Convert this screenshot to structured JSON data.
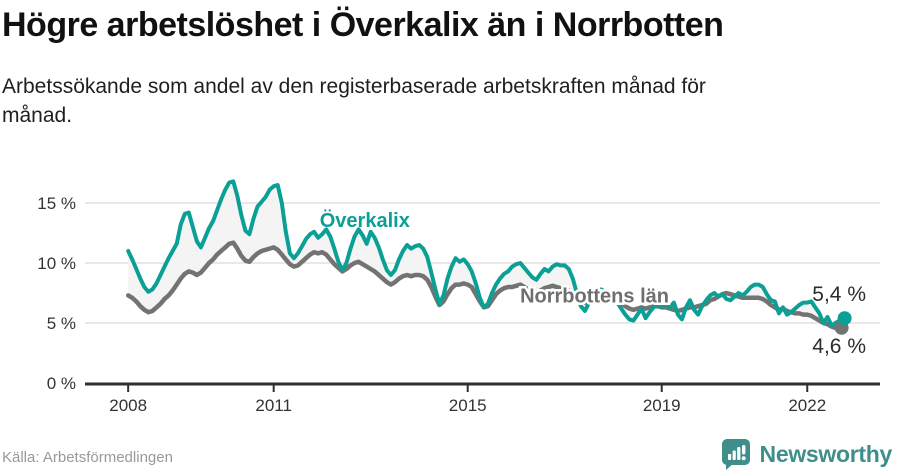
{
  "header": {
    "title": "Högre arbetslöshet i Överkalix än i Norrbotten",
    "subtitle_line1": "Arbetssökande som andel av den registerbaserade arbetskraften månad för",
    "subtitle_line2": "månad."
  },
  "footer": {
    "source": "Källa: Arbetsförmedlingen",
    "brand": "Newsworthy"
  },
  "colors": {
    "overkalix": "#0aa096",
    "norrbotten": "#737373",
    "norrbotten_label": "#6e6e6e",
    "area_fill": "#f4f4f4",
    "grid": "#d9d9d9",
    "axis": "#2f2f2f",
    "tick_text": "#333333",
    "value_label": "#2d2d2d",
    "brand_teal": "#3e8e8b"
  },
  "chart_data": {
    "type": "line",
    "title": "Högre arbetslöshet i Överkalix än i Norrbotten",
    "subtitle": "Arbetssökande som andel av den registerbaserade arbetskraften månad för månad.",
    "unit": "percent of registered labour force",
    "x_start": 2008.0,
    "x_step_months": 1,
    "xlim": [
      2007.11,
      2023.5
    ],
    "ylim": [
      0,
      17.5
    ],
    "grid": true,
    "x_ticks": [
      2008,
      2011,
      2015,
      2019,
      2022
    ],
    "x_tick_labels": [
      "2008",
      "2011",
      "2015",
      "2019",
      "2022"
    ],
    "y_ticks": [
      0,
      5,
      10,
      15
    ],
    "y_tick_labels": [
      "0 %",
      "5 %",
      "10 %",
      "15 %"
    ],
    "series": [
      {
        "name": "Överkalix",
        "end_label": "5,4 %",
        "end_value": 5.4,
        "label_pos": {
          "x": 2011.95,
          "y": 13.0
        },
        "values": [
          11.0,
          10.3,
          9.5,
          8.7,
          8.0,
          7.6,
          7.8,
          8.3,
          9.0,
          9.7,
          10.4,
          11.0,
          11.6,
          13.2,
          14.1,
          14.2,
          13.0,
          11.8,
          11.3,
          12.1,
          12.9,
          13.5,
          14.4,
          15.3,
          16.1,
          16.7,
          16.8,
          15.6,
          14.0,
          12.7,
          12.4,
          13.7,
          14.7,
          15.1,
          15.5,
          16.1,
          16.4,
          16.5,
          15.0,
          12.6,
          10.8,
          10.4,
          10.8,
          11.4,
          12.0,
          12.4,
          12.6,
          12.1,
          12.4,
          12.8,
          12.2,
          11.2,
          10.1,
          9.4,
          10.0,
          11.2,
          12.2,
          12.8,
          12.3,
          11.6,
          12.6,
          12.1,
          11.3,
          10.3,
          9.4,
          9.0,
          9.4,
          10.3,
          11.0,
          11.5,
          11.2,
          11.4,
          11.5,
          11.2,
          10.5,
          9.2,
          7.8,
          6.6,
          7.3,
          8.7,
          9.7,
          10.4,
          10.1,
          10.3,
          9.9,
          9.3,
          8.3,
          7.1,
          6.3,
          6.6,
          7.5,
          8.2,
          8.7,
          9.1,
          9.3,
          9.7,
          9.9,
          10.0,
          9.6,
          9.2,
          8.8,
          8.6,
          9.1,
          9.5,
          9.3,
          9.7,
          9.9,
          9.8,
          9.8,
          9.5,
          8.7,
          7.5,
          6.4,
          6.0,
          6.7,
          7.5,
          7.7,
          7.8,
          7.6,
          7.3,
          7.1,
          6.7,
          6.2,
          5.7,
          5.3,
          5.2,
          5.7,
          6.2,
          5.4,
          5.9,
          6.3,
          6.7,
          6.3,
          6.8,
          6.3,
          6.7,
          5.7,
          5.3,
          6.3,
          6.9,
          6.1,
          5.7,
          6.4,
          6.9,
          7.3,
          7.5,
          7.2,
          7.4,
          7.0,
          6.9,
          7.2,
          7.5,
          7.3,
          7.6,
          8.0,
          8.2,
          8.2,
          8.0,
          7.4,
          6.9,
          6.8,
          5.8,
          6.3,
          5.7,
          5.9,
          6.2,
          6.5,
          6.7,
          6.7,
          6.8,
          6.3,
          5.8,
          5.0,
          5.5,
          4.8,
          5.0,
          5.2,
          5.4
        ]
      },
      {
        "name": "Norrbottens län",
        "end_label": "4,6 %",
        "end_value": 4.6,
        "label_pos": {
          "x": 2016.08,
          "y": 6.7
        },
        "values": [
          7.3,
          7.1,
          6.8,
          6.4,
          6.1,
          5.9,
          6.0,
          6.3,
          6.6,
          7.0,
          7.3,
          7.7,
          8.2,
          8.7,
          9.1,
          9.3,
          9.2,
          9.0,
          9.2,
          9.6,
          10.0,
          10.3,
          10.7,
          11.0,
          11.3,
          11.6,
          11.7,
          11.2,
          10.6,
          10.2,
          10.1,
          10.5,
          10.8,
          11.0,
          11.1,
          11.2,
          11.3,
          11.1,
          10.7,
          10.3,
          9.9,
          9.7,
          9.8,
          10.1,
          10.4,
          10.7,
          10.9,
          10.8,
          10.9,
          10.7,
          10.3,
          9.9,
          9.6,
          9.3,
          9.5,
          9.8,
          10.0,
          10.1,
          9.9,
          9.7,
          9.5,
          9.3,
          9.0,
          8.7,
          8.4,
          8.2,
          8.4,
          8.7,
          8.9,
          9.0,
          8.9,
          9.0,
          9.0,
          8.9,
          8.6,
          8.0,
          7.2,
          6.5,
          6.8,
          7.4,
          7.9,
          8.2,
          8.2,
          8.3,
          8.2,
          8.0,
          7.4,
          6.8,
          6.3,
          6.4,
          6.9,
          7.4,
          7.7,
          7.9,
          8.0,
          8.0,
          8.1,
          8.2,
          8.0,
          7.8,
          7.6,
          7.5,
          7.7,
          7.9,
          8.0,
          8.1,
          8.0,
          7.9,
          7.8,
          7.7,
          7.5,
          7.2,
          6.9,
          6.7,
          6.9,
          7.1,
          7.2,
          7.3,
          7.2,
          7.1,
          7.0,
          6.9,
          6.7,
          6.4,
          6.2,
          6.1,
          6.2,
          6.3,
          6.2,
          6.3,
          6.4,
          6.4,
          6.3,
          6.3,
          6.2,
          6.1,
          6.0,
          6.1,
          6.2,
          6.3,
          6.3,
          6.4,
          6.5,
          6.6,
          6.9,
          7.0,
          7.2,
          7.4,
          7.5,
          7.4,
          7.3,
          7.2,
          7.1,
          7.1,
          7.1,
          7.1,
          7.1,
          7.0,
          6.8,
          6.5,
          6.3,
          6.1,
          6.2,
          6.0,
          5.9,
          5.8,
          5.8,
          5.7,
          5.7,
          5.6,
          5.4,
          5.2,
          5.0,
          4.9,
          4.7,
          4.6,
          4.5,
          4.6
        ]
      }
    ]
  }
}
